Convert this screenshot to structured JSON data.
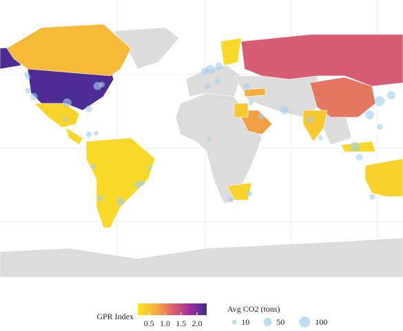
{
  "chart_data": {
    "type": "map",
    "color_legend": {
      "title": "GPR Index",
      "lim": [
        0.15,
        2.3
      ],
      "ticks": [
        0.5,
        {
          "value": 1.0,
          "label": "1.0"
        },
        1.5,
        {
          "value": 2.0,
          "label": "2.0"
        }
      ],
      "colorscale": [
        "#f9e721",
        "#f7b03c",
        "#e0646b",
        "#a32e9c",
        "#3a2c93"
      ]
    },
    "size_legend": {
      "title": "Avg CO2 (tons)",
      "values": [
        10,
        50,
        100
      ],
      "color": "#9fd0ec"
    },
    "regions": {
      "values": [
        2.2,
        0.6,
        0.35,
        0.3,
        0.3,
        1.3,
        1.1,
        0.45,
        0.8,
        0.7,
        0.35,
        0.35,
        0.3,
        0.45,
        0.3
      ]
    },
    "points": {
      "lon": [
        -118,
        -122,
        -122,
        -95,
        -80,
        -74,
        -71,
        -123,
        -96,
        -80,
        -75,
        -77,
        -72,
        -58,
        -46,
        -43,
        -38,
        0,
        4,
        10,
        2,
        9,
        29,
        32,
        39,
        55,
        73,
        80,
        104,
        107,
        114,
        121,
        129,
        140,
        18,
        31,
        3,
        116,
        121
      ],
      "lat": [
        34,
        38,
        47,
        30,
        26,
        41,
        42,
        49,
        19,
        9,
        10,
        -12,
        -33,
        -35,
        -24,
        -23,
        -13,
        51,
        52,
        54,
        41,
        44,
        41,
        30,
        21,
        25,
        19,
        7,
        1,
        -6,
        22,
        31,
        35,
        35,
        -34,
        -30,
        6,
        -32,
        14
      ],
      "co2": [
        40,
        20,
        15,
        60,
        30,
        50,
        20,
        15,
        10,
        20,
        10,
        15,
        20,
        40,
        30,
        20,
        10,
        30,
        60,
        40,
        20,
        15,
        20,
        15,
        20,
        50,
        30,
        15,
        80,
        30,
        60,
        80,
        50,
        40,
        20,
        20,
        10,
        20,
        20
      ]
    }
  }
}
